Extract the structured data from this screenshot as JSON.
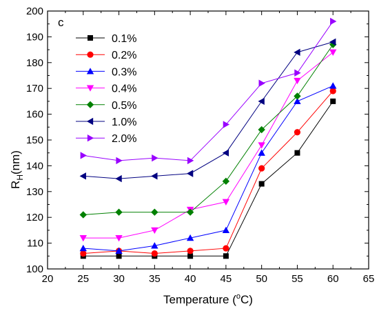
{
  "chart_data": {
    "type": "line",
    "panel_label": "c",
    "xlabel": "Temperature (",
    "xlabel_degree": "o",
    "xlabel_unit": "C)",
    "ylabel_main": "R",
    "ylabel_sub": "H",
    "ylabel_unit": "(nm)",
    "xlim": [
      20,
      65
    ],
    "ylim": [
      100,
      200
    ],
    "x_ticks": [
      "20",
      "25",
      "30",
      "35",
      "40",
      "45",
      "50",
      "55",
      "60",
      "65"
    ],
    "y_ticks": [
      "100",
      "110",
      "120",
      "130",
      "140",
      "150",
      "160",
      "170",
      "180",
      "190",
      "200"
    ],
    "grid": false,
    "legend_position": "top-left",
    "x": [
      25,
      30,
      35,
      40,
      45,
      50,
      55,
      60
    ],
    "series": [
      {
        "name": "0.1%",
        "color": "#000000",
        "marker": "square",
        "values": [
          105,
          105,
          105,
          105,
          105,
          133,
          145,
          165
        ]
      },
      {
        "name": "0.2%",
        "color": "#ff0000",
        "marker": "circle",
        "values": [
          106,
          107,
          106,
          107,
          108,
          139,
          153,
          169
        ]
      },
      {
        "name": "0.3%",
        "color": "#0000ff",
        "marker": "triangle-up",
        "values": [
          108,
          107,
          109,
          112,
          115,
          145,
          165,
          171
        ]
      },
      {
        "name": "0.4%",
        "color": "#ff00ff",
        "marker": "triangle-down",
        "values": [
          112,
          112,
          115,
          123,
          126,
          148,
          173,
          184
        ]
      },
      {
        "name": "0.5%",
        "color": "#008000",
        "marker": "diamond",
        "values": [
          121,
          122,
          122,
          122,
          134,
          154,
          167,
          187
        ]
      },
      {
        "name": "1.0%",
        "color": "#000080",
        "marker": "triangle-left",
        "values": [
          136,
          135,
          136,
          137,
          145,
          165,
          184,
          188
        ]
      },
      {
        "name": "2.0%",
        "color": "#9900ff",
        "marker": "triangle-right",
        "values": [
          144,
          142,
          143,
          142,
          156,
          172,
          176,
          196
        ]
      }
    ]
  }
}
